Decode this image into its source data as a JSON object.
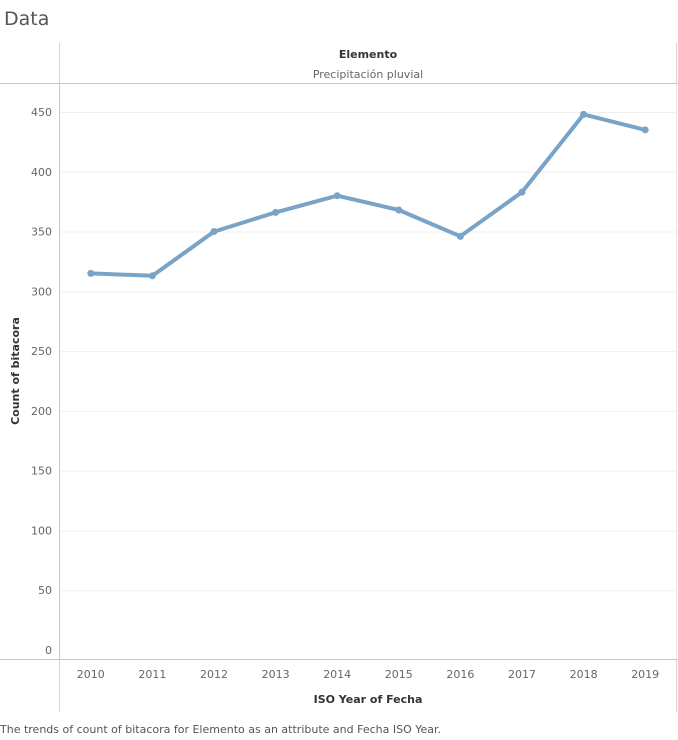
{
  "sheet_title": "Data",
  "caption": "The trends of count of bitacora for Elemento as an attribute and Fecha ISO Year.",
  "chart_data": {
    "type": "line",
    "header_title": "Elemento",
    "header_value": "Precipitación pluvial",
    "xlabel": "ISO Year of Fecha",
    "ylabel": "Count of bitacora",
    "x": [
      "2010",
      "2011",
      "2012",
      "2013",
      "2014",
      "2015",
      "2016",
      "2017",
      "2018",
      "2019"
    ],
    "series": [
      {
        "values": [
          315,
          313,
          350,
          366,
          380,
          368,
          346,
          383,
          448,
          435
        ]
      }
    ],
    "yticks": [
      0,
      50,
      100,
      150,
      200,
      250,
      300,
      350,
      400,
      450
    ],
    "ylim": [
      0,
      470
    ],
    "grid": true,
    "line_color": "#79a3c7"
  }
}
